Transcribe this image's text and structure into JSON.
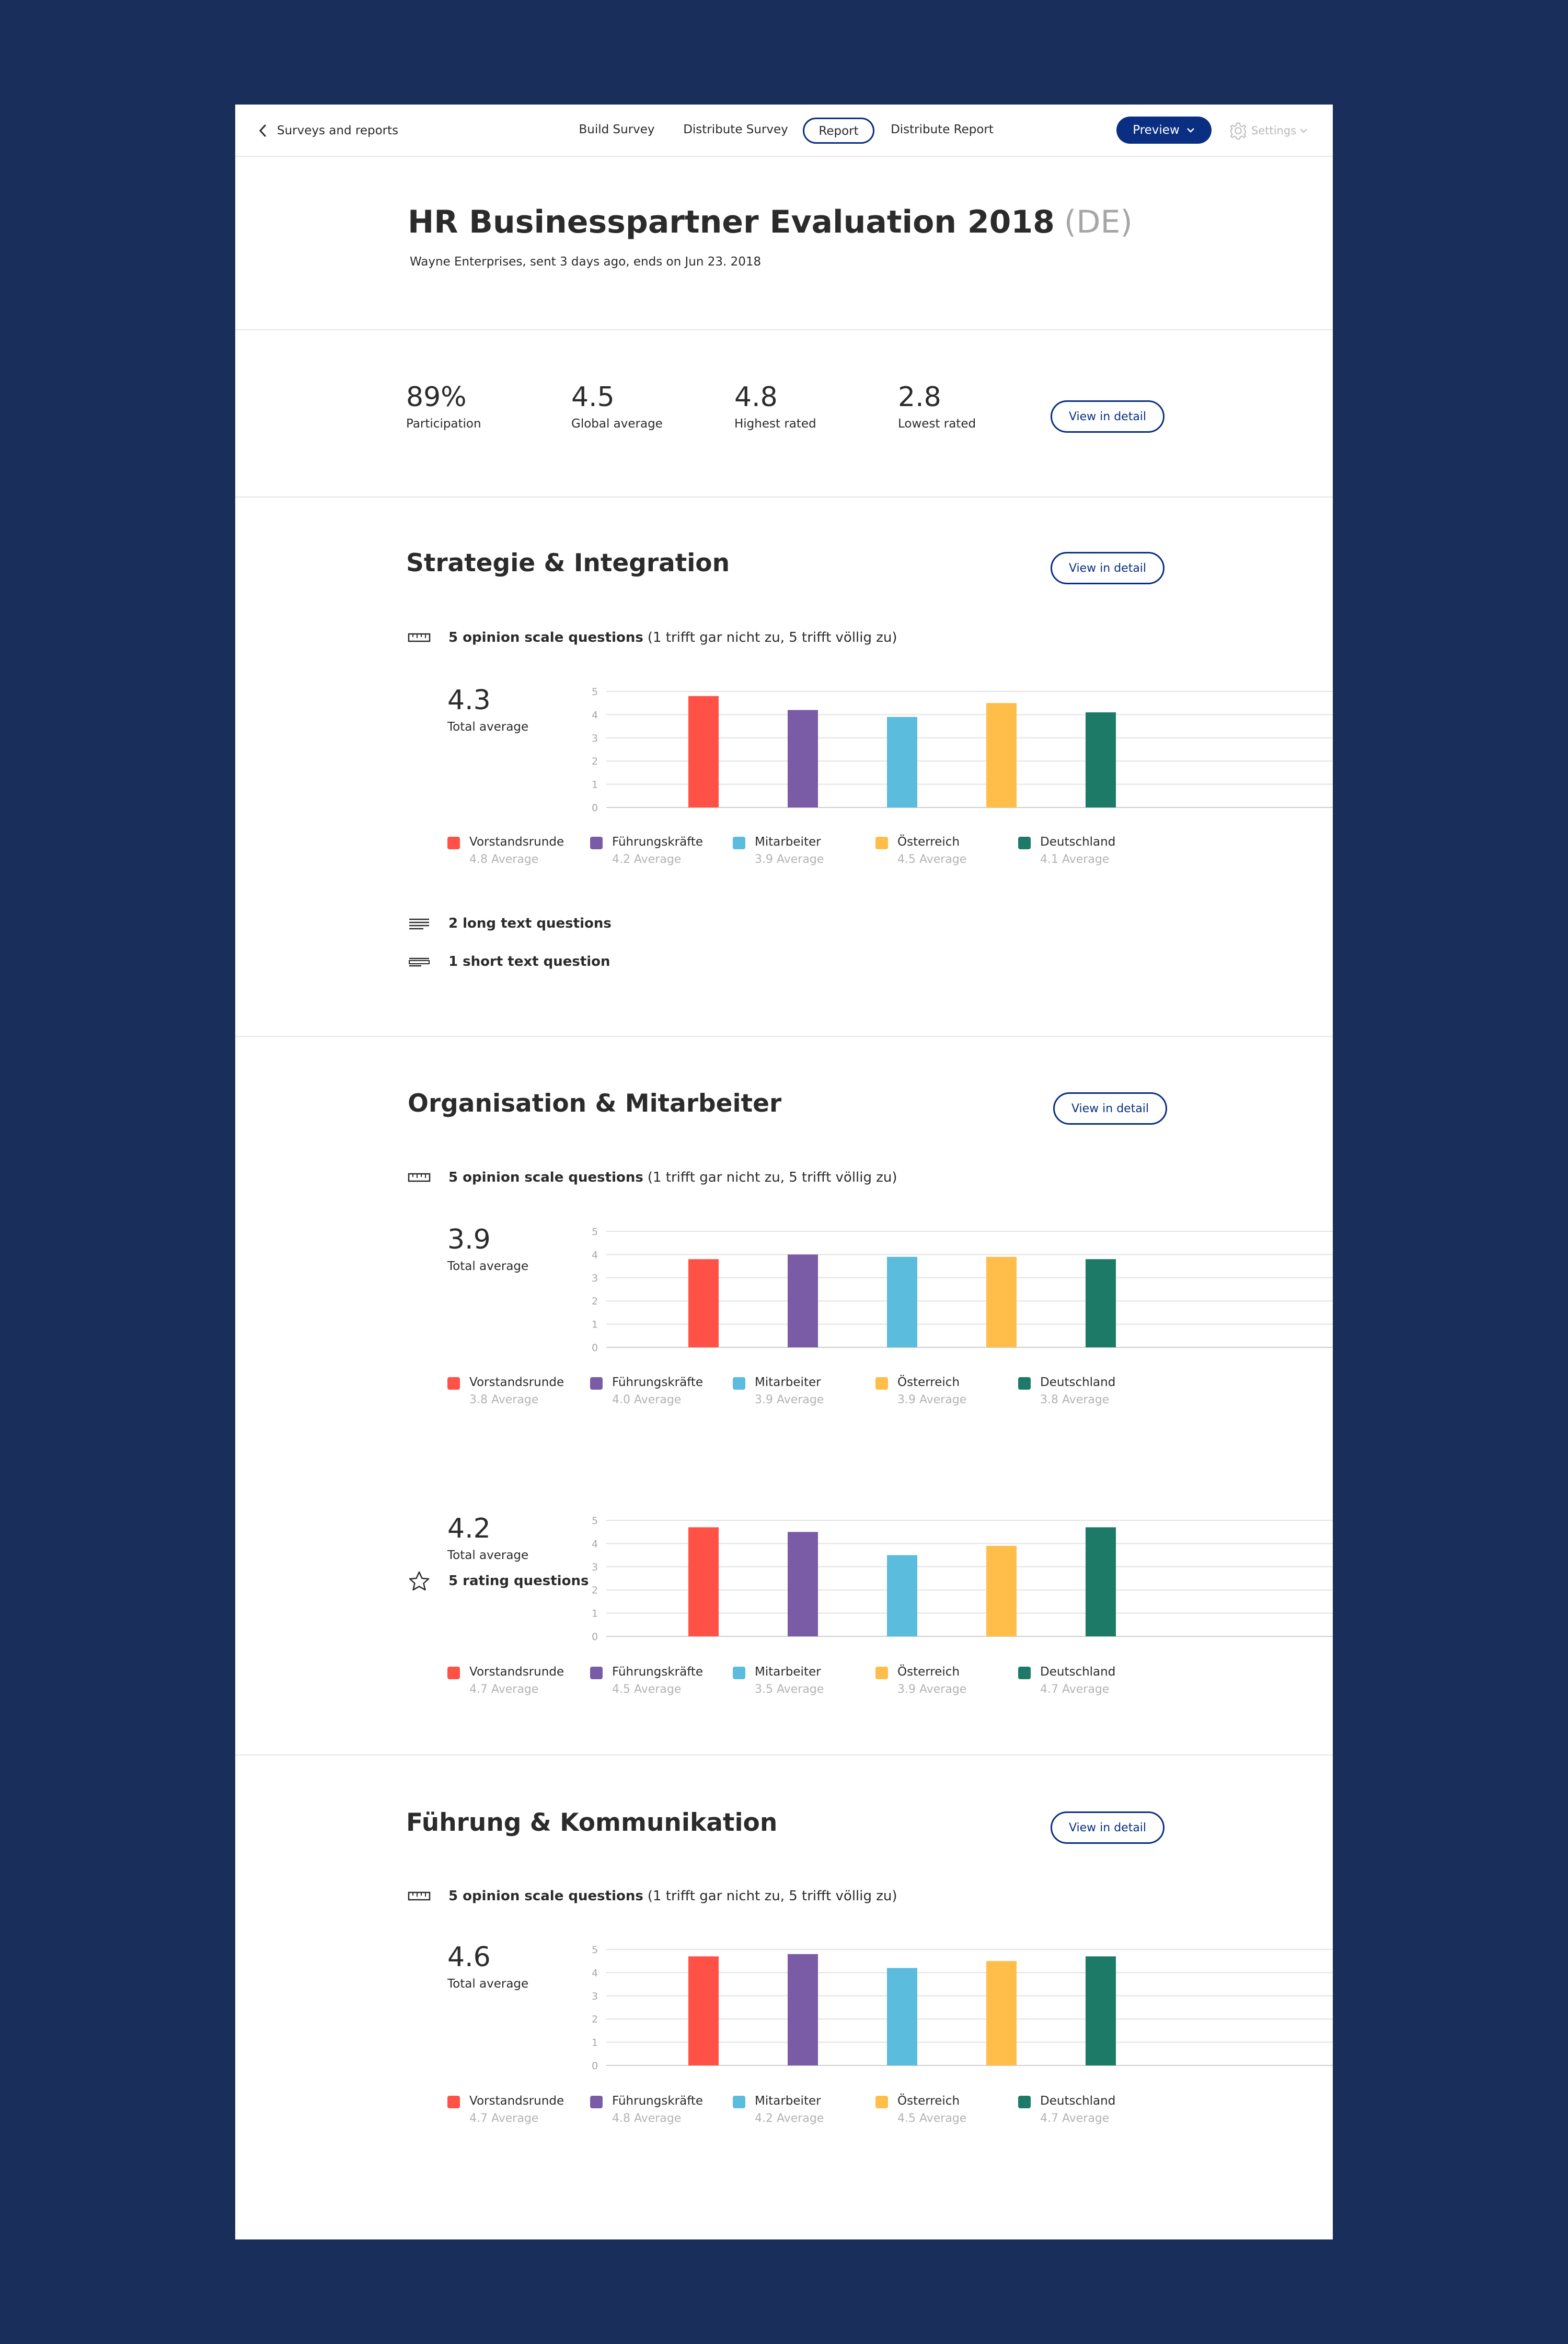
{
  "nav": {
    "back_label": "Surveys and reports",
    "tabs": [
      {
        "label": "Build Survey",
        "active": false
      },
      {
        "label": "Distribute Survey",
        "active": false
      },
      {
        "label": "Report",
        "active": true
      },
      {
        "label": "Distribute Report",
        "active": false
      }
    ],
    "preview_label": "Preview",
    "settings_label": "Settings"
  },
  "header": {
    "title": "HR Businesspartner Evaluation 2018",
    "title_suffix": "(DE)",
    "subtitle": "Wayne Enterprises, sent 3 days ago, ends on Jun 23. 2018"
  },
  "stats": {
    "items": [
      {
        "value": "89%",
        "label": "Participation"
      },
      {
        "value": "4.5",
        "label": "Global average"
      },
      {
        "value": "4.8",
        "label": "Highest rated"
      },
      {
        "value": "2.8",
        "label": "Lowest rated"
      }
    ],
    "view_detail_label": "View in detail"
  },
  "colors": {
    "primary": "#0a2f82",
    "page_background": "#1a2e5c",
    "series": [
      "#ff5145",
      "#7a5ca6",
      "#5bbcdd",
      "#ffbd4a",
      "#1d7a66"
    ]
  },
  "sections": [
    {
      "title": "Strategie & Integration",
      "view_detail_label": "View in detail",
      "blocks": [
        {
          "icon": "ruler-icon",
          "label_bold": "5 opinion scale questions",
          "label_note": "(1 trifft gar nicht zu, 5 trifft völlig zu)",
          "total_value": "4.3",
          "total_label": "Total average",
          "chart_index": 0
        }
      ],
      "extras": [
        {
          "icon": "long-text-icon",
          "label": "2 long text questions"
        },
        {
          "icon": "short-text-icon",
          "label": "1 short text question"
        }
      ]
    },
    {
      "title": "Organisation & Mitarbeiter",
      "view_detail_label": "View in detail",
      "blocks": [
        {
          "icon": "ruler-icon",
          "label_bold": "5 opinion scale questions",
          "label_note": "(1 trifft gar nicht zu, 5 trifft völlig zu)",
          "total_value": "3.9",
          "total_label": "Total average",
          "chart_index": 1
        },
        {
          "icon": "star-icon",
          "label_bold": "5 rating questions",
          "label_note": "",
          "total_value": "4.2",
          "total_label": "Total average",
          "chart_index": 2
        }
      ]
    },
    {
      "title": "Führung & Kommunikation",
      "view_detail_label": "View in detail",
      "blocks": [
        {
          "icon": "ruler-icon",
          "label_bold": "5 opinion scale questions",
          "label_note": "(1 trifft gar nicht zu, 5 trifft völlig zu)",
          "total_value": "4.6",
          "total_label": "Total average",
          "chart_index": 3
        }
      ]
    }
  ],
  "chart_data": [
    {
      "type": "bar",
      "categories": [
        "Vorstandsrunde",
        "Führungskräfte",
        "Mitarbeiter",
        "Österreich",
        "Deutschland"
      ],
      "values": [
        4.8,
        4.2,
        3.9,
        4.5,
        4.1
      ],
      "value_labels": [
        "4.8 Average",
        "4.2 Average",
        "3.9 Average",
        "4.5 Average",
        "4.1 Average"
      ],
      "yticks": [
        "0",
        "1",
        "2",
        "3",
        "4",
        "5"
      ],
      "ylim": [
        0,
        5
      ],
      "grid": true
    },
    {
      "type": "bar",
      "categories": [
        "Vorstandsrunde",
        "Führungskräfte",
        "Mitarbeiter",
        "Österreich",
        "Deutschland"
      ],
      "values": [
        3.8,
        4.0,
        3.9,
        3.9,
        3.8
      ],
      "value_labels": [
        "3.8 Average",
        "4.0 Average",
        "3.9 Average",
        "3.9 Average",
        "3.8 Average"
      ],
      "yticks": [
        "0",
        "1",
        "2",
        "3",
        "4",
        "5"
      ],
      "ylim": [
        0,
        5
      ],
      "grid": true
    },
    {
      "type": "bar",
      "categories": [
        "Vorstandsrunde",
        "Führungskräfte",
        "Mitarbeiter",
        "Österreich",
        "Deutschland"
      ],
      "values": [
        4.7,
        4.5,
        3.5,
        3.9,
        4.7
      ],
      "value_labels": [
        "4.7 Average",
        "4.5 Average",
        "3.5 Average",
        "3.9 Average",
        "4.7 Average"
      ],
      "yticks": [
        "0",
        "1",
        "2",
        "3",
        "4",
        "5"
      ],
      "ylim": [
        0,
        5
      ],
      "grid": true
    },
    {
      "type": "bar",
      "categories": [
        "Vorstandsrunde",
        "Führungskräfte",
        "Mitarbeiter",
        "Österreich",
        "Deutschland"
      ],
      "values": [
        4.7,
        4.8,
        4.2,
        4.5,
        4.7
      ],
      "value_labels": [
        "4.7 Average",
        "4.8 Average",
        "4.2 Average",
        "4.5 Average",
        "4.7 Average"
      ],
      "yticks": [
        "0",
        "1",
        "2",
        "3",
        "4",
        "5"
      ],
      "ylim": [
        0,
        5
      ],
      "grid": true
    }
  ]
}
